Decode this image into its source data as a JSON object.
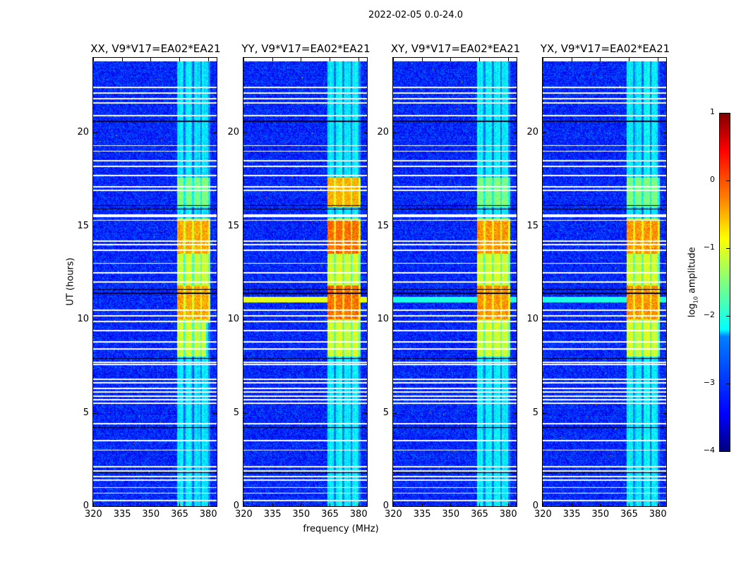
{
  "chart_data": {
    "type": "heatmap",
    "title": "2022-02-05 0.0-24.0",
    "xlabel": "frequency (MHz)",
    "ylabel": "UT (hours)",
    "xlim": [
      320,
      384.5
    ],
    "ylim": [
      0,
      24
    ],
    "xticks": [
      "320",
      "335",
      "350",
      "365",
      "380"
    ],
    "yticks": [
      "0",
      "5",
      "10",
      "15",
      "20"
    ],
    "panels": [
      {
        "title": "XX, V9*V17=EA02*EA21",
        "rfi_peak_log_amp": -0.3,
        "cross_band": false
      },
      {
        "title": "YY, V9*V17=EA02*EA21",
        "rfi_peak_log_amp": 0.0,
        "cross_band": true
      },
      {
        "title": "XY, V9*V17=EA02*EA21",
        "rfi_peak_log_amp": -0.2,
        "cross_band": true
      },
      {
        "title": "YX, V9*V17=EA02*EA21",
        "rfi_peak_log_amp": -0.2,
        "cross_band": true
      }
    ],
    "background_log_amp": -3.2,
    "rfi_band_mhz": [
      364,
      381
    ],
    "rfi_active_hours": [
      [
        8,
        15.4
      ],
      [
        16,
        17.6
      ]
    ],
    "flagged_hours": [
      23.9,
      22.4,
      22.1,
      21.8,
      21.6,
      20.9,
      19.3,
      19.0,
      18.5,
      18.2,
      17.7,
      17.1,
      16.9,
      15.6,
      15.5,
      15.3,
      14.2,
      14.0,
      13.7,
      13.0,
      12.5,
      12.0,
      10.5,
      10.2,
      9.9,
      9.4,
      8.8,
      8.4,
      7.7,
      7.6,
      6.8,
      6.6,
      6.3,
      6.1,
      5.9,
      5.7,
      5.5,
      4.4,
      3.5,
      3.0,
      2.1,
      1.9,
      1.6,
      1.4,
      1.0,
      0.7,
      0.3
    ],
    "dark_hours": [
      20.6,
      16.1,
      15.9,
      11.6,
      11.4,
      7.9,
      4.2,
      1.8
    ],
    "colorbar": {
      "label": "log10 amplitude",
      "label_base": "log",
      "label_sub": "10",
      "label_rest": " amplitude",
      "range": [
        -4,
        1
      ],
      "ticks": [
        "1",
        "0",
        "−1",
        "−2",
        "−3",
        "−4"
      ],
      "colormap": "jet"
    }
  }
}
